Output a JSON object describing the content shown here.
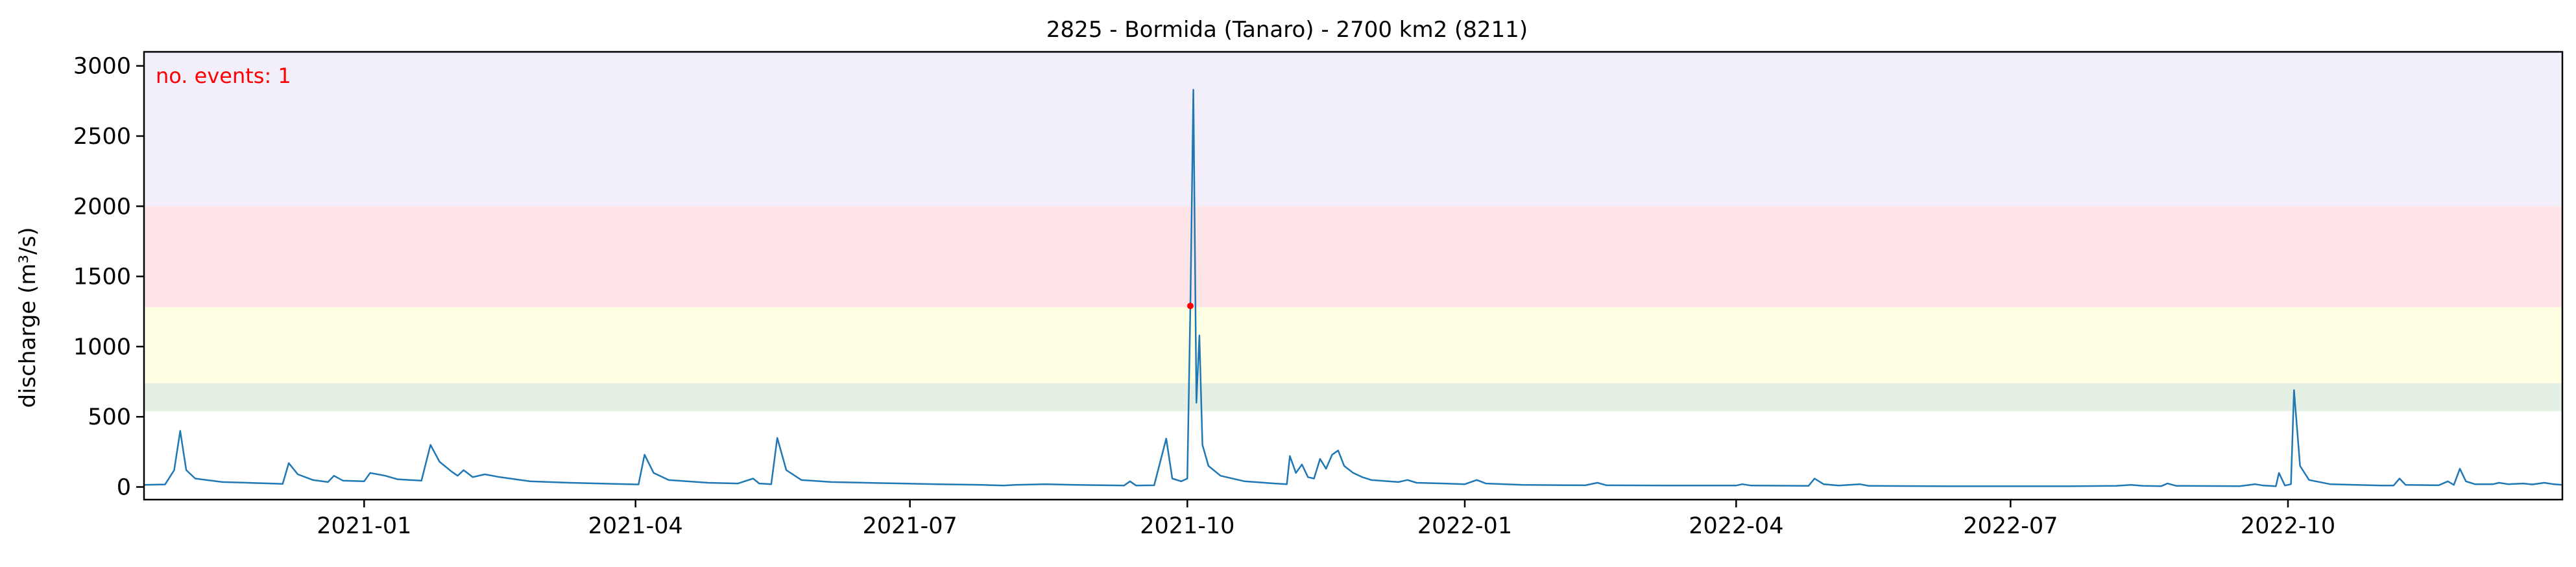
{
  "chart_data": {
    "type": "line",
    "title": "2825 - Bormida (Tanaro) - 2700 km2 (8211)",
    "xlabel": "",
    "ylabel": "discharge (m³/s)",
    "xlim": [
      "2020-10-20",
      "2022-12-31"
    ],
    "ylim": [
      -90,
      3100
    ],
    "yticks": [
      0,
      500,
      1000,
      1500,
      2000,
      2500,
      3000
    ],
    "xticks": [
      "2021-01-01",
      "2021-04-01",
      "2021-07-01",
      "2021-10-01",
      "2022-01-01",
      "2022-04-01",
      "2022-07-01",
      "2022-10-01"
    ],
    "xtick_labels": [
      "2021-01",
      "2021-04",
      "2021-07",
      "2021-10",
      "2022-01",
      "2022-04",
      "2022-07",
      "2022-10"
    ],
    "grid": false,
    "annotation": "no. events: 1",
    "annotation_color": "#ff0000",
    "line_color": "#1f77b4",
    "bands": [
      {
        "from": 540,
        "to": 740,
        "color": "#e4f0e4"
      },
      {
        "from": 740,
        "to": 1280,
        "color": "#ffffe4"
      },
      {
        "from": 1280,
        "to": 2000,
        "color": "#ffe4e8"
      },
      {
        "from": 2000,
        "to": 3100,
        "color": "#f2eefa"
      }
    ],
    "events": [
      {
        "x": "2021-10-02",
        "y": 1290,
        "color": "#ff0000"
      }
    ],
    "series": [
      {
        "points": [
          [
            "2020-10-20",
            15
          ],
          [
            "2020-10-27",
            18
          ],
          [
            "2020-10-30",
            120
          ],
          [
            "2020-11-01",
            400
          ],
          [
            "2020-11-03",
            120
          ],
          [
            "2020-11-06",
            60
          ],
          [
            "2020-11-15",
            35
          ],
          [
            "2020-12-01",
            25
          ],
          [
            "2020-12-05",
            22
          ],
          [
            "2020-12-07",
            170
          ],
          [
            "2020-12-10",
            90
          ],
          [
            "2020-12-15",
            50
          ],
          [
            "2020-12-20",
            35
          ],
          [
            "2020-12-22",
            80
          ],
          [
            "2020-12-25",
            45
          ],
          [
            "2021-01-01",
            40
          ],
          [
            "2021-01-03",
            100
          ],
          [
            "2021-01-08",
            80
          ],
          [
            "2021-01-12",
            55
          ],
          [
            "2021-01-20",
            45
          ],
          [
            "2021-01-23",
            300
          ],
          [
            "2021-01-26",
            180
          ],
          [
            "2021-01-30",
            110
          ],
          [
            "2021-02-01",
            80
          ],
          [
            "2021-02-03",
            120
          ],
          [
            "2021-02-06",
            70
          ],
          [
            "2021-02-10",
            90
          ],
          [
            "2021-02-15",
            70
          ],
          [
            "2021-02-25",
            40
          ],
          [
            "2021-03-10",
            30
          ],
          [
            "2021-03-25",
            22
          ],
          [
            "2021-04-02",
            18
          ],
          [
            "2021-04-04",
            230
          ],
          [
            "2021-04-07",
            100
          ],
          [
            "2021-04-12",
            50
          ],
          [
            "2021-04-25",
            30
          ],
          [
            "2021-05-05",
            25
          ],
          [
            "2021-05-10",
            60
          ],
          [
            "2021-05-12",
            25
          ],
          [
            "2021-05-16",
            20
          ],
          [
            "2021-05-18",
            350
          ],
          [
            "2021-05-21",
            120
          ],
          [
            "2021-05-26",
            50
          ],
          [
            "2021-06-05",
            35
          ],
          [
            "2021-06-20",
            28
          ],
          [
            "2021-07-10",
            20
          ],
          [
            "2021-07-25",
            15
          ],
          [
            "2021-08-01",
            10
          ],
          [
            "2021-08-05",
            15
          ],
          [
            "2021-08-15",
            20
          ],
          [
            "2021-08-25",
            15
          ],
          [
            "2021-09-10",
            10
          ],
          [
            "2021-09-12",
            40
          ],
          [
            "2021-09-14",
            10
          ],
          [
            "2021-09-20",
            12
          ],
          [
            "2021-09-24",
            345
          ],
          [
            "2021-09-26",
            60
          ],
          [
            "2021-09-29",
            40
          ],
          [
            "2021-10-01",
            60
          ],
          [
            "2021-10-02",
            1290
          ],
          [
            "2021-10-03",
            2830
          ],
          [
            "2021-10-04",
            600
          ],
          [
            "2021-10-05",
            1080
          ],
          [
            "2021-10-06",
            300
          ],
          [
            "2021-10-08",
            150
          ],
          [
            "2021-10-12",
            80
          ],
          [
            "2021-10-20",
            40
          ],
          [
            "2021-10-30",
            25
          ],
          [
            "2021-11-03",
            20
          ],
          [
            "2021-11-04",
            220
          ],
          [
            "2021-11-06",
            100
          ],
          [
            "2021-11-08",
            160
          ],
          [
            "2021-11-10",
            70
          ],
          [
            "2021-11-12",
            60
          ],
          [
            "2021-11-14",
            200
          ],
          [
            "2021-11-16",
            130
          ],
          [
            "2021-11-18",
            230
          ],
          [
            "2021-11-20",
            260
          ],
          [
            "2021-11-22",
            150
          ],
          [
            "2021-11-25",
            100
          ],
          [
            "2021-11-28",
            70
          ],
          [
            "2021-12-01",
            50
          ],
          [
            "2021-12-10",
            35
          ],
          [
            "2021-12-13",
            50
          ],
          [
            "2021-12-16",
            30
          ],
          [
            "2021-12-25",
            25
          ],
          [
            "2022-01-01",
            20
          ],
          [
            "2022-01-05",
            50
          ],
          [
            "2022-01-08",
            25
          ],
          [
            "2022-01-20",
            15
          ],
          [
            "2022-02-10",
            12
          ],
          [
            "2022-02-14",
            30
          ],
          [
            "2022-02-17",
            12
          ],
          [
            "2022-03-10",
            10
          ],
          [
            "2022-04-01",
            10
          ],
          [
            "2022-04-03",
            20
          ],
          [
            "2022-04-06",
            10
          ],
          [
            "2022-04-25",
            8
          ],
          [
            "2022-04-27",
            60
          ],
          [
            "2022-04-30",
            20
          ],
          [
            "2022-05-05",
            10
          ],
          [
            "2022-05-12",
            20
          ],
          [
            "2022-05-15",
            8
          ],
          [
            "2022-06-10",
            5
          ],
          [
            "2022-07-01",
            5
          ],
          [
            "2022-07-20",
            5
          ],
          [
            "2022-08-05",
            8
          ],
          [
            "2022-08-10",
            15
          ],
          [
            "2022-08-14",
            8
          ],
          [
            "2022-08-20",
            6
          ],
          [
            "2022-08-22",
            25
          ],
          [
            "2022-08-25",
            8
          ],
          [
            "2022-09-15",
            6
          ],
          [
            "2022-09-20",
            20
          ],
          [
            "2022-09-23",
            10
          ],
          [
            "2022-09-27",
            5
          ],
          [
            "2022-09-28",
            100
          ],
          [
            "2022-09-30",
            10
          ],
          [
            "2022-10-02",
            20
          ],
          [
            "2022-10-03",
            690
          ],
          [
            "2022-10-05",
            150
          ],
          [
            "2022-10-08",
            50
          ],
          [
            "2022-10-15",
            20
          ],
          [
            "2022-11-01",
            10
          ],
          [
            "2022-11-05",
            10
          ],
          [
            "2022-11-07",
            60
          ],
          [
            "2022-11-09",
            15
          ],
          [
            "2022-11-20",
            12
          ],
          [
            "2022-11-23",
            40
          ],
          [
            "2022-11-25",
            15
          ],
          [
            "2022-11-27",
            130
          ],
          [
            "2022-11-29",
            40
          ],
          [
            "2022-12-02",
            20
          ],
          [
            "2022-12-08",
            20
          ],
          [
            "2022-12-10",
            30
          ],
          [
            "2022-12-13",
            20
          ],
          [
            "2022-12-18",
            25
          ],
          [
            "2022-12-21",
            18
          ],
          [
            "2022-12-25",
            30
          ],
          [
            "2022-12-28",
            20
          ],
          [
            "2022-12-31",
            15
          ]
        ]
      }
    ]
  }
}
